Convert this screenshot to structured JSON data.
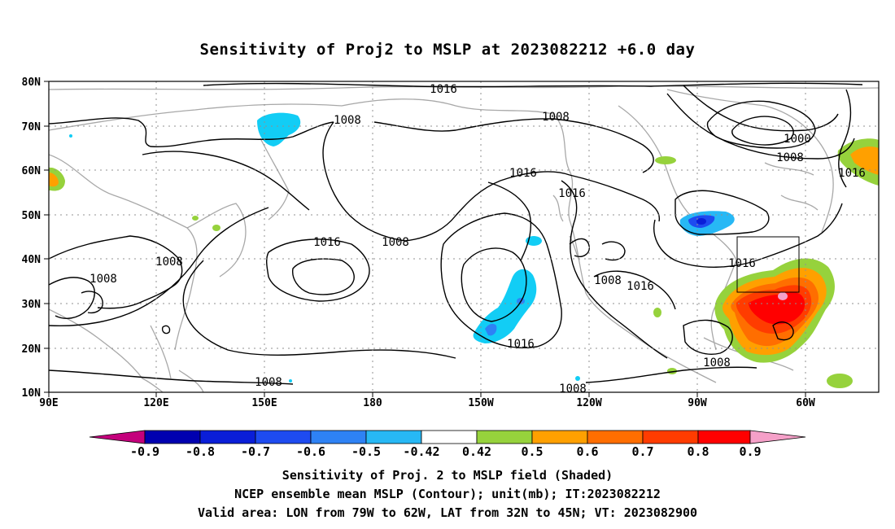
{
  "title": "Sensitivity of Proj2 to MSLP at 2023082212 +6.0 day",
  "lon_labels": [
    "90E",
    "120E",
    "150E",
    "180",
    "150W",
    "120W",
    "90W",
    "60W"
  ],
  "lat_labels": [
    "80N",
    "70N",
    "60N",
    "50N",
    "40N",
    "30N",
    "20N",
    "10N"
  ],
  "contour_labels": [
    "1016",
    "1008",
    "1008",
    "1000",
    "1008",
    "1016",
    "1016",
    "1016",
    "1016",
    "1008",
    "1008",
    "1008",
    "1016",
    "1016",
    "1008",
    "1016",
    "1008",
    "1008",
    "1008"
  ],
  "colorbar": {
    "labels": [
      "-0.9",
      "-0.8",
      "-0.7",
      "-0.6",
      "-0.5",
      "-0.42",
      "0.42",
      "0.5",
      "0.6",
      "0.7",
      "0.8",
      "0.9"
    ],
    "colors": [
      "#c4007c",
      "#0000b0",
      "#0a1ed8",
      "#1e4bf0",
      "#2e82f5",
      "#27b8f5",
      "#12cdf5",
      "#ffffff",
      "#96d23c",
      "#ffa000",
      "#ff6e00",
      "#ff3c00",
      "#ff0000",
      "#f5a0c8"
    ]
  },
  "valid_box": {
    "lon_from": "79W",
    "lon_to": "62W",
    "lat_from": "32N",
    "lat_to": "45N"
  },
  "captions": {
    "line1": "Sensitivity of Proj. 2 to MSLP field (Shaded)",
    "line2": "NCEP ensemble mean MSLP (Contour); unit(mb); IT:2023082212",
    "line3": "Valid area: LON from 79W to 62W, LAT from 32N to 45N; VT: 2023082900"
  }
}
